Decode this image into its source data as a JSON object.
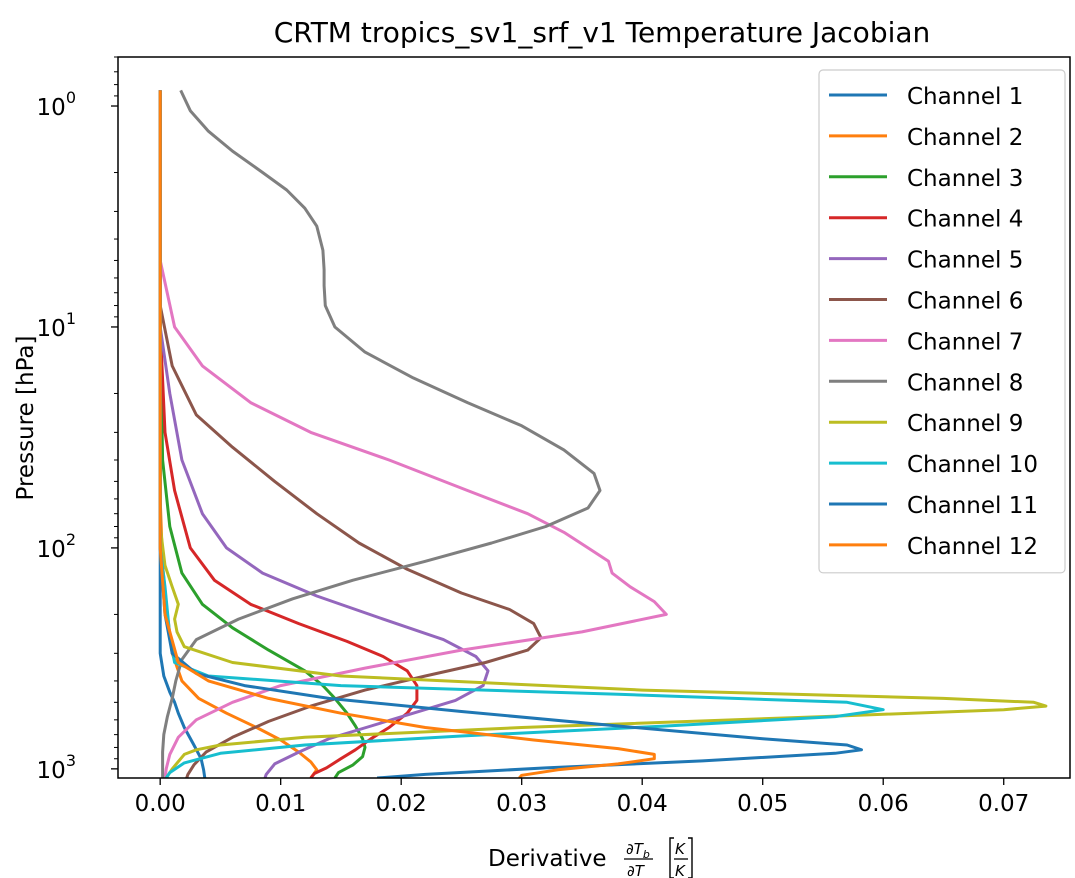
{
  "chart_data": {
    "type": "line",
    "title": "CRTM tropics_sv1_srf_v1 Temperature Jacobian",
    "xlabel": "Derivative",
    "xlabel_math": {
      "num": "∂T",
      "num_sub": "b",
      "den": "∂T",
      "unit_num": "K",
      "unit_den": "K"
    },
    "ylabel": "Pressure [hPa]",
    "xlim": [
      -0.0035,
      0.0755
    ],
    "ylim": [
      1100,
      0.6
    ],
    "yscale": "log",
    "y_inverted": true,
    "grid": false,
    "legend_position": "top-right",
    "xticks": [
      0,
      0.01,
      0.02,
      0.03,
      0.04,
      0.05,
      0.06,
      0.07
    ],
    "xtick_labels": [
      "0.00",
      "0.01",
      "0.02",
      "0.03",
      "0.04",
      "0.05",
      "0.06",
      "0.07"
    ],
    "yticks": [
      1,
      10,
      100,
      1000
    ],
    "ytick_labels": [
      "10",
      "10",
      "10",
      "10"
    ],
    "ytick_exponents": [
      "0",
      "1",
      "2",
      "3"
    ],
    "series": [
      {
        "name": "Channel 1",
        "color": "#1f77b4",
        "points": [
          [
            0.0,
            0.85
          ],
          [
            0.0,
            10
          ],
          [
            0.0,
            100
          ],
          [
            0.0,
            300
          ],
          [
            0.0003,
            380
          ],
          [
            0.0008,
            450
          ],
          [
            0.0012,
            500
          ],
          [
            0.0015,
            560
          ],
          [
            0.002,
            650
          ],
          [
            0.0028,
            780
          ],
          [
            0.0034,
            900
          ],
          [
            0.0036,
            1010
          ],
          [
            0.0037,
            1100
          ]
        ]
      },
      {
        "name": "Channel 2",
        "color": "#ff7f0e",
        "points": [
          [
            0.0,
            0.85
          ],
          [
            0.0,
            10
          ],
          [
            0.0,
            60
          ],
          [
            0.0002,
            120
          ],
          [
            0.0006,
            200
          ],
          [
            0.001,
            300
          ],
          [
            0.0018,
            400
          ],
          [
            0.0032,
            480
          ],
          [
            0.0055,
            560
          ],
          [
            0.008,
            650
          ],
          [
            0.01,
            740
          ],
          [
            0.0115,
            840
          ],
          [
            0.0125,
            930
          ],
          [
            0.013,
            1010
          ],
          [
            0.0125,
            1100
          ]
        ]
      },
      {
        "name": "Channel 3",
        "color": "#2ca02c",
        "points": [
          [
            0.0,
            0.85
          ],
          [
            0.0,
            10
          ],
          [
            0.0002,
            40
          ],
          [
            0.0008,
            80
          ],
          [
            0.0018,
            130
          ],
          [
            0.0035,
            180
          ],
          [
            0.006,
            230
          ],
          [
            0.009,
            290
          ],
          [
            0.012,
            360
          ],
          [
            0.0135,
            420
          ],
          [
            0.0145,
            480
          ],
          [
            0.0155,
            560
          ],
          [
            0.0162,
            640
          ],
          [
            0.0168,
            730
          ],
          [
            0.017,
            800
          ],
          [
            0.0168,
            880
          ],
          [
            0.016,
            960
          ],
          [
            0.0148,
            1040
          ],
          [
            0.0145,
            1100
          ]
        ]
      },
      {
        "name": "Channel 4",
        "color": "#d62728",
        "points": [
          [
            0.0,
            0.85
          ],
          [
            0.0,
            10
          ],
          [
            0.0004,
            30
          ],
          [
            0.0012,
            55
          ],
          [
            0.0025,
            100
          ],
          [
            0.0045,
            140
          ],
          [
            0.0075,
            180
          ],
          [
            0.0115,
            220
          ],
          [
            0.0155,
            265
          ],
          [
            0.0185,
            310
          ],
          [
            0.0205,
            360
          ],
          [
            0.0213,
            420
          ],
          [
            0.0213,
            490
          ],
          [
            0.0205,
            560
          ],
          [
            0.019,
            650
          ],
          [
            0.0175,
            730
          ],
          [
            0.0162,
            820
          ],
          [
            0.015,
            900
          ],
          [
            0.0138,
            990
          ],
          [
            0.0128,
            1050
          ],
          [
            0.0125,
            1100
          ]
        ]
      },
      {
        "name": "Channel 5",
        "color": "#9467bd",
        "points": [
          [
            0.0,
            0.85
          ],
          [
            0.0,
            10
          ],
          [
            0.0008,
            20
          ],
          [
            0.0018,
            40
          ],
          [
            0.0035,
            70
          ],
          [
            0.0055,
            100
          ],
          [
            0.0085,
            130
          ],
          [
            0.013,
            165
          ],
          [
            0.0185,
            210
          ],
          [
            0.0235,
            260
          ],
          [
            0.0262,
            310
          ],
          [
            0.0272,
            360
          ],
          [
            0.0268,
            420
          ],
          [
            0.0245,
            490
          ],
          [
            0.021,
            560
          ],
          [
            0.0175,
            640
          ],
          [
            0.014,
            730
          ],
          [
            0.0115,
            840
          ],
          [
            0.0095,
            950
          ],
          [
            0.0088,
            1060
          ],
          [
            0.0087,
            1100
          ]
        ]
      },
      {
        "name": "Channel 6",
        "color": "#8c564b",
        "points": [
          [
            0.0,
            0.85
          ],
          [
            0.0,
            8
          ],
          [
            0.001,
            15
          ],
          [
            0.003,
            25
          ],
          [
            0.006,
            35
          ],
          [
            0.0095,
            50
          ],
          [
            0.013,
            70
          ],
          [
            0.0165,
            95
          ],
          [
            0.0205,
            125
          ],
          [
            0.025,
            160
          ],
          [
            0.029,
            190
          ],
          [
            0.031,
            220
          ],
          [
            0.0316,
            255
          ],
          [
            0.0305,
            290
          ],
          [
            0.027,
            330
          ],
          [
            0.022,
            380
          ],
          [
            0.017,
            440
          ],
          [
            0.0125,
            520
          ],
          [
            0.009,
            610
          ],
          [
            0.006,
            720
          ],
          [
            0.0038,
            840
          ],
          [
            0.0028,
            960
          ],
          [
            0.0023,
            1060
          ],
          [
            0.0022,
            1100
          ]
        ]
      },
      {
        "name": "Channel 7",
        "color": "#e377c2",
        "points": [
          [
            0.0,
            0.85
          ],
          [
            0.0,
            5
          ],
          [
            0.0012,
            10
          ],
          [
            0.0035,
            15
          ],
          [
            0.0075,
            22
          ],
          [
            0.0125,
            30
          ],
          [
            0.019,
            40
          ],
          [
            0.0255,
            55
          ],
          [
            0.0305,
            70
          ],
          [
            0.0335,
            85
          ],
          [
            0.0355,
            100
          ],
          [
            0.0372,
            115
          ],
          [
            0.0375,
            130
          ],
          [
            0.039,
            150
          ],
          [
            0.041,
            175
          ],
          [
            0.042,
            200
          ],
          [
            0.035,
            240
          ],
          [
            0.025,
            290
          ],
          [
            0.017,
            350
          ],
          [
            0.01,
            420
          ],
          [
            0.006,
            500
          ],
          [
            0.003,
            600
          ],
          [
            0.0015,
            720
          ],
          [
            0.0008,
            860
          ],
          [
            0.0005,
            1000
          ],
          [
            0.0004,
            1100
          ]
        ]
      },
      {
        "name": "Channel 8",
        "color": "#7f7f7f",
        "points": [
          [
            0.0017,
            0.85
          ],
          [
            0.0025,
            1.05
          ],
          [
            0.004,
            1.3
          ],
          [
            0.006,
            1.6
          ],
          [
            0.0085,
            2.0
          ],
          [
            0.0105,
            2.4
          ],
          [
            0.012,
            2.9
          ],
          [
            0.013,
            3.5
          ],
          [
            0.0135,
            4.5
          ],
          [
            0.0136,
            5.5
          ],
          [
            0.0136,
            6.5
          ],
          [
            0.0137,
            8.0
          ],
          [
            0.0145,
            10
          ],
          [
            0.017,
            13
          ],
          [
            0.021,
            17
          ],
          [
            0.0255,
            22
          ],
          [
            0.03,
            28
          ],
          [
            0.0335,
            36
          ],
          [
            0.036,
            46
          ],
          [
            0.0365,
            55
          ],
          [
            0.0355,
            66
          ],
          [
            0.032,
            80
          ],
          [
            0.0275,
            95
          ],
          [
            0.022,
            115
          ],
          [
            0.016,
            140
          ],
          [
            0.011,
            170
          ],
          [
            0.0065,
            210
          ],
          [
            0.003,
            260
          ],
          [
            0.0018,
            320
          ],
          [
            0.0013,
            400
          ],
          [
            0.001,
            480
          ],
          [
            0.0006,
            580
          ],
          [
            0.0003,
            700
          ],
          [
            0.0002,
            840
          ],
          [
            0.0002,
            1000
          ],
          [
            0.0002,
            1100
          ]
        ]
      },
      {
        "name": "Channel 9",
        "color": "#bcbd22",
        "points": [
          [
            0.0,
            0.85
          ],
          [
            0.0,
            10
          ],
          [
            0.0,
            80
          ],
          [
            0.0004,
            120
          ],
          [
            0.001,
            150
          ],
          [
            0.0015,
            180
          ],
          [
            0.0012,
            210
          ],
          [
            0.0014,
            240
          ],
          [
            0.002,
            280
          ],
          [
            0.006,
            330
          ],
          [
            0.015,
            380
          ],
          [
            0.04,
            440
          ],
          [
            0.065,
            480
          ],
          [
            0.0725,
            500
          ],
          [
            0.0735,
            520
          ],
          [
            0.07,
            540
          ],
          [
            0.055,
            580
          ],
          [
            0.03,
            650
          ],
          [
            0.012,
            720
          ],
          [
            0.005,
            780
          ],
          [
            0.003,
            820
          ],
          [
            0.002,
            860
          ],
          [
            0.001,
            1000
          ],
          [
            0.0005,
            1100
          ]
        ]
      },
      {
        "name": "Channel 10",
        "color": "#17becf",
        "points": [
          [
            0.0,
            0.85
          ],
          [
            0.0,
            10
          ],
          [
            0.0,
            100
          ],
          [
            0.0004,
            150
          ],
          [
            0.0008,
            250
          ],
          [
            0.0012,
            330
          ],
          [
            0.004,
            380
          ],
          [
            0.015,
            420
          ],
          [
            0.038,
            460
          ],
          [
            0.057,
            500
          ],
          [
            0.06,
            540
          ],
          [
            0.056,
            580
          ],
          [
            0.042,
            640
          ],
          [
            0.025,
            710
          ],
          [
            0.012,
            780
          ],
          [
            0.005,
            850
          ],
          [
            0.002,
            940
          ],
          [
            0.0008,
            1040
          ],
          [
            0.0005,
            1100
          ]
        ]
      },
      {
        "name": "Channel 11",
        "color": "#1f77b4",
        "points": [
          [
            0.0,
            0.85
          ],
          [
            0.0,
            10
          ],
          [
            0.0,
            100
          ],
          [
            0.0004,
            200
          ],
          [
            0.001,
            300
          ],
          [
            0.003,
            370
          ],
          [
            0.007,
            420
          ],
          [
            0.014,
            480
          ],
          [
            0.025,
            550
          ],
          [
            0.038,
            640
          ],
          [
            0.05,
            730
          ],
          [
            0.057,
            780
          ],
          [
            0.0582,
            820
          ],
          [
            0.056,
            850
          ],
          [
            0.045,
            920
          ],
          [
            0.032,
            990
          ],
          [
            0.022,
            1060
          ],
          [
            0.018,
            1100
          ]
        ]
      },
      {
        "name": "Channel 12",
        "color": "#ff7f0e",
        "points": [
          [
            0.0,
            0.85
          ],
          [
            0.0,
            10
          ],
          [
            0.0,
            100
          ],
          [
            0.0004,
            200
          ],
          [
            0.0015,
            330
          ],
          [
            0.004,
            400
          ],
          [
            0.009,
            480
          ],
          [
            0.015,
            560
          ],
          [
            0.022,
            650
          ],
          [
            0.031,
            740
          ],
          [
            0.038,
            810
          ],
          [
            0.041,
            860
          ],
          [
            0.041,
            900
          ],
          [
            0.038,
            950
          ],
          [
            0.033,
            1010
          ],
          [
            0.03,
            1070
          ],
          [
            0.0298,
            1100
          ]
        ]
      }
    ]
  }
}
